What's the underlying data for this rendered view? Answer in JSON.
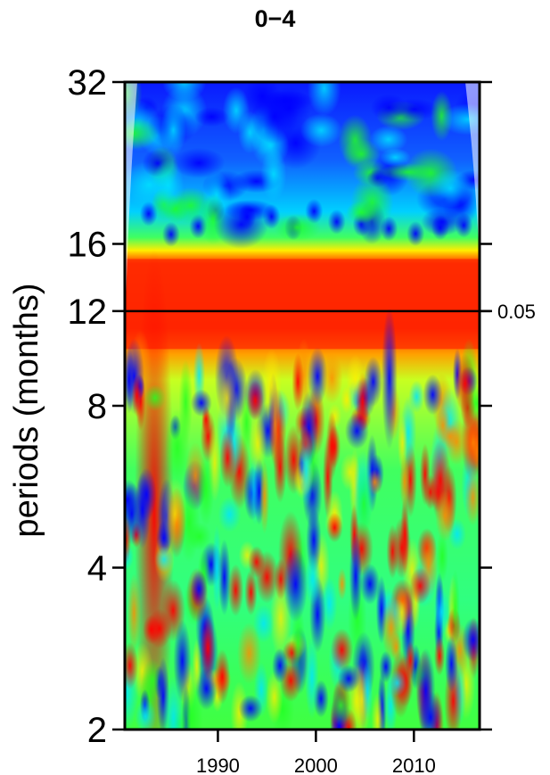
{
  "chart_data": {
    "type": "heatmap",
    "title": "0−4",
    "xlabel": "",
    "ylabel": "periods (months)",
    "x_ticks": [
      1990,
      2000,
      2010
    ],
    "x_tick_labels": [
      "1990",
      "2000",
      "2010"
    ],
    "xlim": [
      1980.5,
      2016.7
    ],
    "y_ticks": [
      2,
      4,
      8,
      12,
      16,
      32
    ],
    "y_tick_labels": [
      "2",
      "4",
      "8",
      "12",
      "16",
      "32"
    ],
    "ylim": [
      2,
      32
    ],
    "y_scale": "log2",
    "colormap": [
      "#0000ff",
      "#00ffff",
      "#00ff00",
      "#ffff00",
      "#ff0000"
    ],
    "significance_line": {
      "period": 12,
      "label": "0.05"
    },
    "high_power_band": {
      "period_range": [
        10,
        15
      ],
      "x_range": [
        1981,
        2016
      ]
    },
    "low_power_region": {
      "period_range": [
        16,
        32
      ]
    }
  }
}
